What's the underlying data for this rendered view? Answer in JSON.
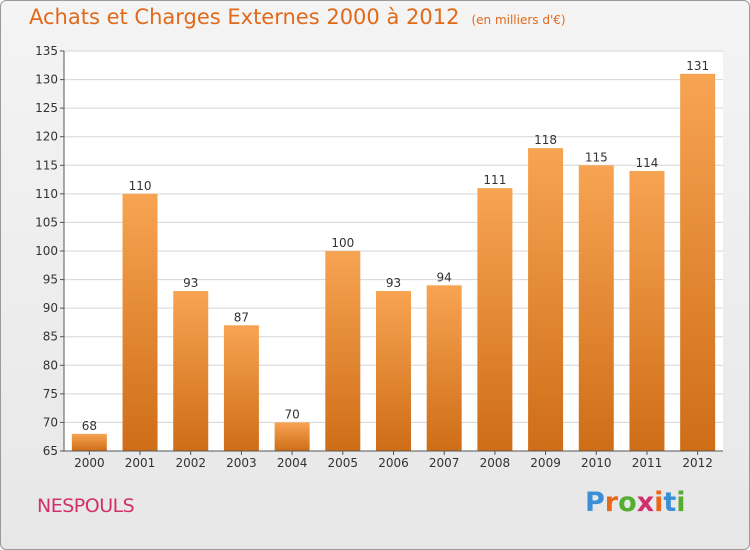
{
  "chart_data": {
    "type": "bar",
    "title": "Achats et Charges Externes 2000 à 2012",
    "unit_label": "(en milliers d'€)",
    "categories": [
      "2000",
      "2001",
      "2002",
      "2003",
      "2004",
      "2005",
      "2006",
      "2007",
      "2008",
      "2009",
      "2010",
      "2011",
      "2012"
    ],
    "values": [
      68,
      110,
      93,
      87,
      70,
      100,
      93,
      94,
      111,
      118,
      115,
      114,
      131
    ],
    "ylim": [
      65,
      135
    ],
    "yticks": [
      65,
      70,
      75,
      80,
      85,
      90,
      95,
      100,
      105,
      110,
      115,
      120,
      125,
      130,
      135
    ],
    "grid": true,
    "xlabel": "",
    "ylabel": "",
    "colors": {
      "bar_top": "#f7a452",
      "bar_bottom": "#cf6d17",
      "title": "#e06a1a",
      "place": "#d2306a"
    }
  },
  "place_name": "NESPOULS",
  "logo": {
    "text": "Proxiti",
    "letter_colors": [
      "#3b8fd6",
      "#e8671a",
      "#55ad33",
      "#d2306a",
      "#e8671a",
      "#3b8fd6",
      "#55ad33"
    ]
  }
}
